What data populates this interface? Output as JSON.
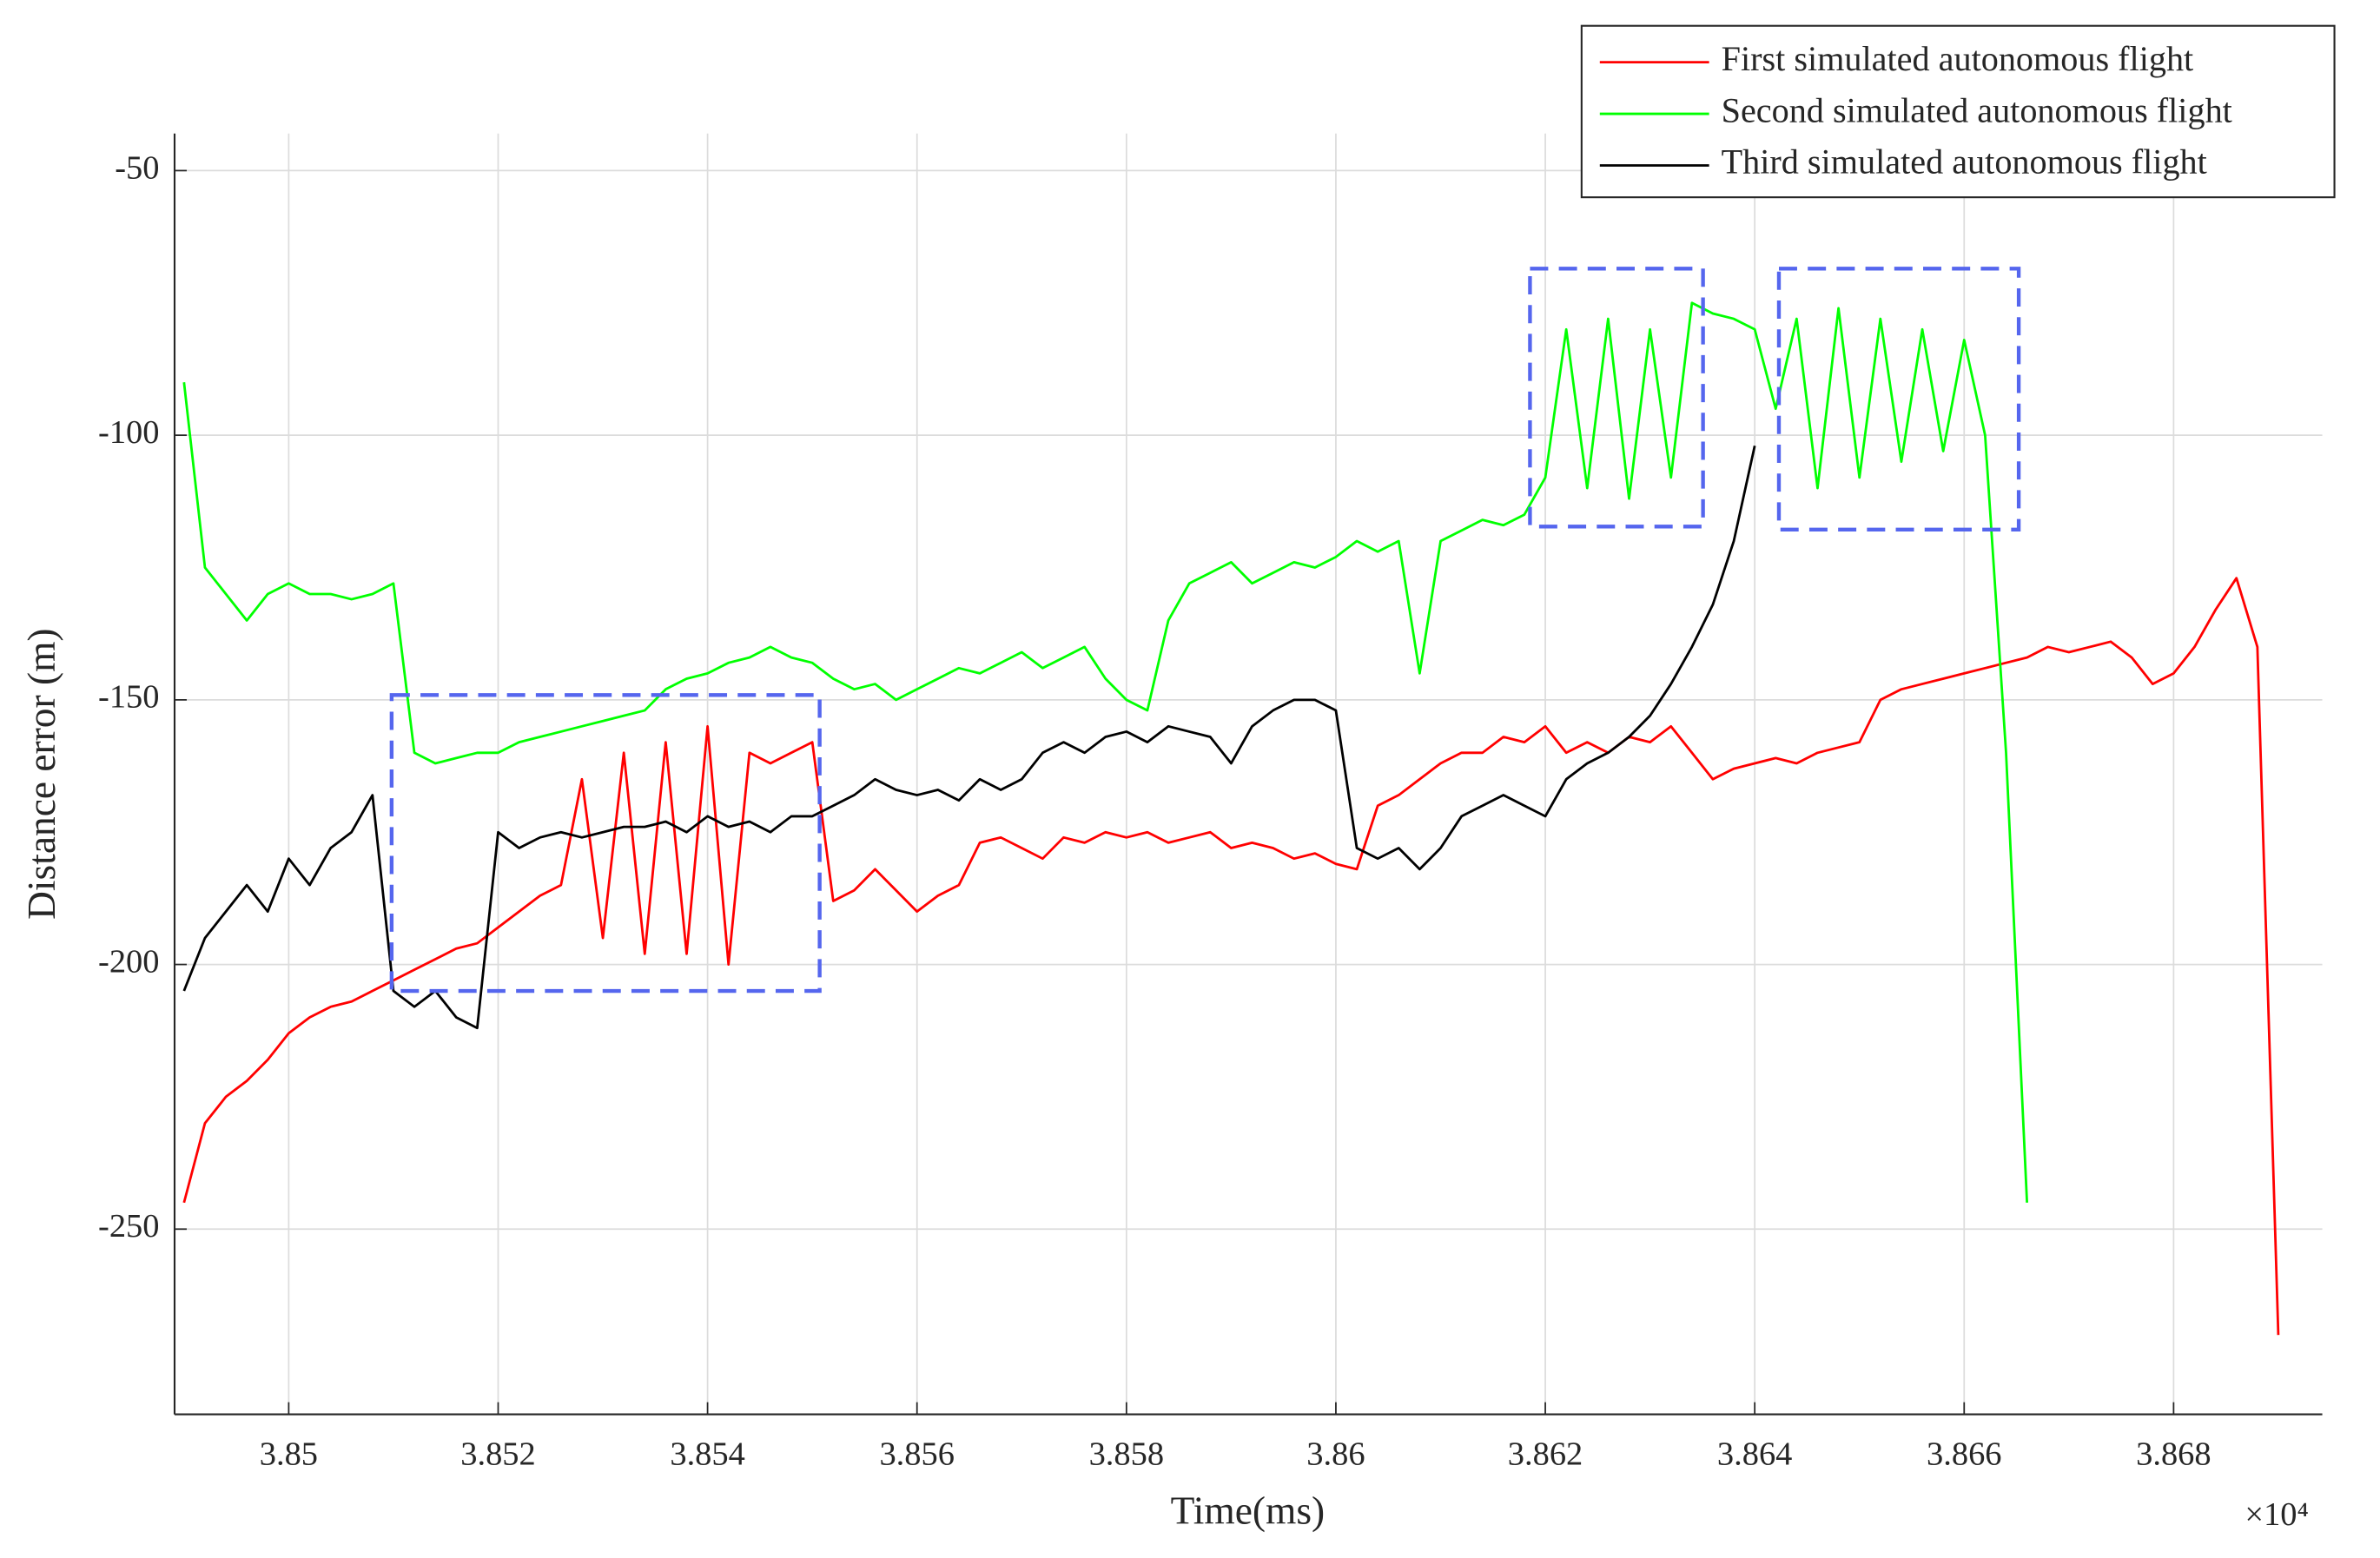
{
  "chart_data": {
    "type": "line",
    "xlabel": "Time(ms)",
    "ylabel": "Distance error (m)",
    "x_multiplier": "×10⁴",
    "x": [
      3.849,
      3.8492,
      3.8494,
      3.8496,
      3.8498,
      3.85,
      3.8502,
      3.8504,
      3.8506,
      3.8508,
      3.851,
      3.8512,
      3.8514,
      3.8516,
      3.8518,
      3.852,
      3.8522,
      3.8524,
      3.8526,
      3.8528,
      3.853,
      3.8532,
      3.8534,
      3.8536,
      3.8538,
      3.854,
      3.8542,
      3.8544,
      3.8546,
      3.8548,
      3.855,
      3.8552,
      3.8554,
      3.8556,
      3.8558,
      3.856,
      3.8562,
      3.8564,
      3.8566,
      3.8568,
      3.857,
      3.8572,
      3.8574,
      3.8576,
      3.8578,
      3.858,
      3.8582,
      3.8584,
      3.8586,
      3.8588,
      3.859,
      3.8592,
      3.8594,
      3.8596,
      3.8598,
      3.86,
      3.8602,
      3.8604,
      3.8606,
      3.8608,
      3.861,
      3.8612,
      3.8614,
      3.8616,
      3.8618,
      3.862,
      3.8622,
      3.8624,
      3.8626,
      3.8628,
      3.863,
      3.8632,
      3.8634,
      3.8636,
      3.8638,
      3.864,
      3.8642,
      3.8644,
      3.8646,
      3.8648,
      3.865,
      3.8652,
      3.8654,
      3.8656,
      3.8658,
      3.866,
      3.8662,
      3.8664,
      3.8666,
      3.8668,
      3.867,
      3.8672,
      3.8674,
      3.8676,
      3.8678,
      3.868,
      3.8682,
      3.8684,
      3.8686,
      3.8688,
      3.869
    ],
    "series": [
      {
        "name": "First simulated autonomous flight",
        "color": "#ff0000",
        "values": [
          -245,
          -230,
          -225,
          -222,
          -218,
          -213,
          -210,
          -208,
          -207,
          -205,
          -203,
          -201,
          -199,
          -197,
          -196,
          -193,
          -190,
          -187,
          -185,
          -165,
          -195,
          -160,
          -198,
          -158,
          -198,
          -155,
          -200,
          -160,
          -162,
          -160,
          -158,
          -188,
          -186,
          -182,
          -186,
          -190,
          -187,
          -185,
          -177,
          -176,
          -178,
          -180,
          -176,
          -177,
          -175,
          -176,
          -175,
          -177,
          -176,
          -175,
          -178,
          -177,
          -178,
          -180,
          -179,
          -181,
          -182,
          -170,
          -168,
          -165,
          -162,
          -160,
          -160,
          -157,
          -158,
          -155,
          -160,
          -158,
          -160,
          -157,
          -158,
          -155,
          -160,
          -165,
          -163,
          -162,
          -161,
          -162,
          -160,
          -159,
          -158,
          -150,
          -148,
          -147,
          -146,
          -145,
          -144,
          -143,
          -142,
          -140,
          -141,
          -140,
          -139,
          -142,
          -147,
          -145,
          -140,
          -133,
          -127,
          -140,
          -270
        ]
      },
      {
        "name": "Second simulated autonomous flight",
        "color": "#00ff00",
        "values": [
          -90,
          -125,
          -130,
          -135,
          -130,
          -128,
          -130,
          -130,
          -131,
          -130,
          -128,
          -160,
          -162,
          -161,
          -160,
          -160,
          -158,
          -157,
          -156,
          -155,
          -154,
          -153,
          -152,
          -148,
          -146,
          -145,
          -143,
          -142,
          -140,
          -142,
          -143,
          -146,
          -148,
          -147,
          -150,
          -148,
          -146,
          -144,
          -145,
          -143,
          -141,
          -144,
          -142,
          -140,
          -146,
          -150,
          -152,
          -135,
          -128,
          -126,
          -124,
          -128,
          -126,
          -124,
          -125,
          -123,
          -120,
          -122,
          -120,
          -145,
          -120,
          -118,
          -116,
          -117,
          -115,
          -108,
          -80,
          -110,
          -78,
          -112,
          -80,
          -108,
          -75,
          -77,
          -78,
          -80,
          -95,
          -78,
          -110,
          -76,
          -108,
          -78,
          -105,
          -80,
          -103,
          -82,
          -100,
          -160,
          -245,
          null,
          null,
          null,
          null,
          null,
          null,
          null,
          null,
          null,
          null,
          null,
          null
        ]
      },
      {
        "name": "Third simulated autonomous flight",
        "color": "#000000",
        "values": [
          -205,
          -195,
          -190,
          -185,
          -190,
          -180,
          -185,
          -178,
          -175,
          -168,
          -205,
          -208,
          -205,
          -210,
          -212,
          -175,
          -178,
          -176,
          -175,
          -176,
          -175,
          -174,
          -174,
          -173,
          -175,
          -172,
          -174,
          -173,
          -175,
          -172,
          -172,
          -170,
          -168,
          -165,
          -167,
          -168,
          -167,
          -169,
          -165,
          -167,
          -165,
          -160,
          -158,
          -160,
          -157,
          -156,
          -158,
          -155,
          -156,
          -157,
          -162,
          -155,
          -152,
          -150,
          -150,
          -152,
          -178,
          -180,
          -178,
          -182,
          -178,
          -172,
          -170,
          -168,
          -170,
          -172,
          -165,
          -162,
          -160,
          -157,
          -153,
          -147,
          -140,
          -132,
          -120,
          -102,
          null,
          null,
          null,
          null,
          null,
          null,
          null,
          null,
          null,
          null,
          null,
          null,
          null,
          null,
          null,
          null,
          null,
          null,
          null,
          null,
          null,
          null,
          null,
          null,
          null
        ]
      }
    ],
    "xlim": [
      3.84891,
      3.86942
    ],
    "xticks": [
      3.85,
      3.852,
      3.854,
      3.856,
      3.858,
      3.86,
      3.862,
      3.864,
      3.866,
      3.868
    ],
    "ylim": [
      -285,
      -43
    ],
    "yticks": [
      -250,
      -200,
      -150,
      -100,
      -50
    ],
    "grid": true,
    "legend": "upper right"
  }
}
